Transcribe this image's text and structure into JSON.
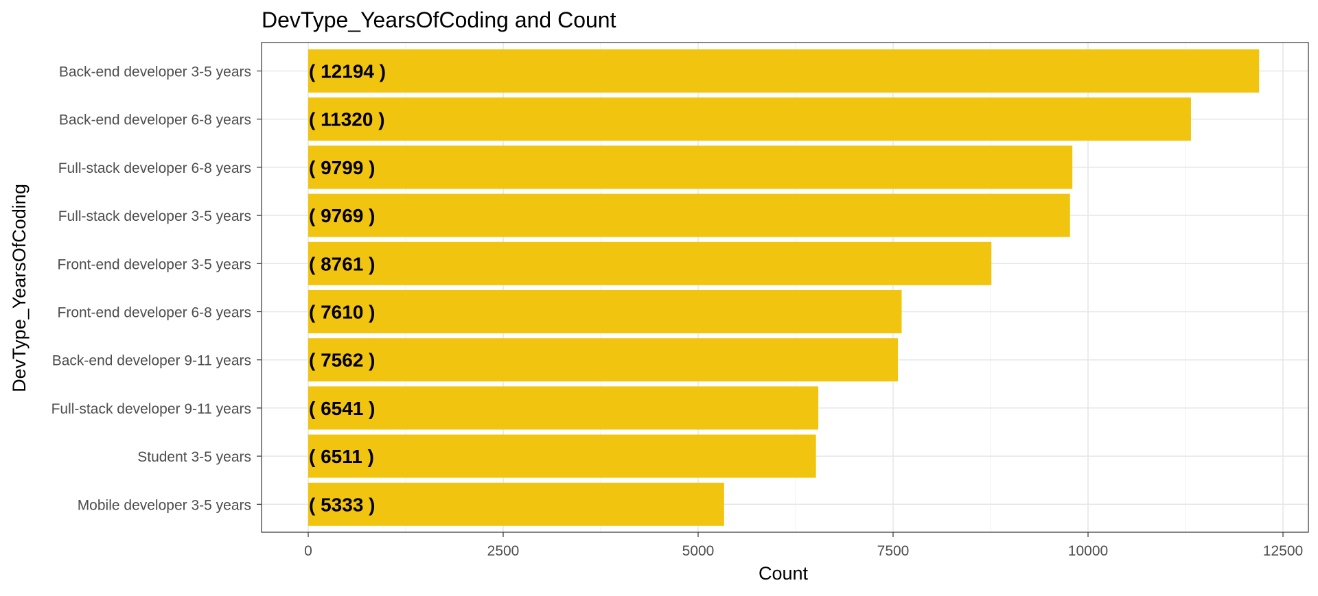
{
  "chart_data": {
    "type": "bar",
    "orientation": "horizontal",
    "title": "DevType_YearsOfCoding and Count",
    "xlabel": "Count",
    "ylabel": "DevType_YearsOfCoding",
    "categories": [
      "Back-end developer 3-5 years",
      "Back-end developer 6-8 years",
      "Full-stack developer 6-8 years",
      "Full-stack developer 3-5 years",
      "Front-end developer 3-5 years",
      "Front-end developer 6-8 years",
      "Back-end developer 9-11 years",
      "Full-stack developer 9-11 years",
      "Student 3-5 years",
      "Mobile developer 3-5 years"
    ],
    "values": [
      12194,
      11320,
      9799,
      9769,
      8761,
      7610,
      7562,
      6541,
      6511,
      5333
    ],
    "data_labels": [
      "( 12194 )",
      "( 11320 )",
      "( 9799 )",
      "( 9769 )",
      "( 8761 )",
      "( 7610 )",
      "( 7562 )",
      "( 6541 )",
      "( 6511 )",
      "( 5333 )"
    ],
    "xticks": [
      0,
      2500,
      5000,
      7500,
      10000,
      12500
    ],
    "xtick_labels": [
      "0",
      "2500",
      "5000",
      "7500",
      "10000",
      "12500"
    ],
    "xlim": [
      -3000,
      12800
    ],
    "grid": true,
    "legend": "none",
    "bar_color": "#F1C40F"
  }
}
